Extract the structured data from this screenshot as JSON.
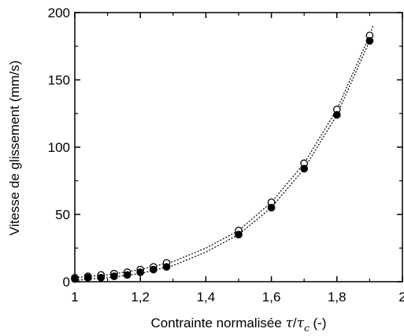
{
  "chart_data": {
    "type": "scatter",
    "xlabel_text": "Contrainte normalisée ",
    "xlabel_tau": "τ",
    "xlabel_slash": "/",
    "xlabel_tau2": "τ",
    "xlabel_sub": "c",
    "xlabel_unit": " (-)",
    "ylabel": "Vitesse de glissement (mm/s)",
    "xlim": [
      1,
      2
    ],
    "ylim": [
      0,
      200
    ],
    "x_ticks": [
      1,
      1.2,
      1.4,
      1.6,
      1.8,
      2
    ],
    "x_tick_labels": [
      "1",
      "1,2",
      "1,4",
      "1,6",
      "1,8",
      "2"
    ],
    "y_ticks": [
      0,
      50,
      100,
      150,
      200
    ],
    "y_tick_labels": [
      "0",
      "50",
      "100",
      "150",
      "200"
    ],
    "grid": false,
    "legend": "none",
    "series": [
      {
        "marker": "open-circle",
        "x": [
          1.0,
          1.04,
          1.08,
          1.12,
          1.16,
          1.2,
          1.24,
          1.28,
          1.5,
          1.6,
          1.7,
          1.8,
          1.9
        ],
        "y": [
          3,
          4,
          5,
          6,
          7,
          9,
          11,
          14,
          38,
          59,
          88,
          128,
          183
        ]
      },
      {
        "marker": "filled-circle",
        "x": [
          1.0,
          1.04,
          1.08,
          1.12,
          1.16,
          1.2,
          1.24,
          1.28,
          1.5,
          1.6,
          1.7,
          1.8,
          1.9
        ],
        "y": [
          2,
          3,
          3,
          4,
          5,
          7,
          9,
          11,
          35,
          55,
          84,
          124,
          179
        ]
      }
    ],
    "fits": [
      {
        "style": "dotted",
        "x": [
          1.0,
          1.1,
          1.2,
          1.3,
          1.4,
          1.5,
          1.6,
          1.7,
          1.8,
          1.9,
          1.91
        ],
        "y": [
          3,
          5,
          9,
          15,
          25,
          38,
          59,
          88,
          128,
          183,
          190
        ]
      },
      {
        "style": "dotted",
        "x": [
          1.0,
          1.1,
          1.2,
          1.3,
          1.4,
          1.5,
          1.6,
          1.7,
          1.8,
          1.9
        ],
        "y": [
          1,
          3,
          6,
          12,
          22,
          35,
          55,
          84,
          124,
          179
        ]
      }
    ]
  }
}
